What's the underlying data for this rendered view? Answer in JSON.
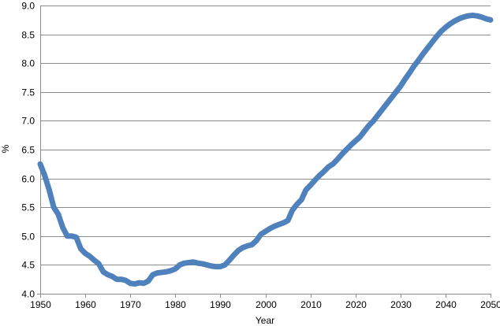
{
  "chart_data": {
    "type": "line",
    "title": "",
    "xlabel": "Year",
    "ylabel": "%",
    "xlim": [
      1950,
      2050
    ],
    "ylim": [
      4.0,
      9.0
    ],
    "x_ticks": [
      "1950",
      "1960",
      "1970",
      "1980",
      "1990",
      "2000",
      "2010",
      "2020",
      "2030",
      "2040",
      "2050"
    ],
    "y_ticks": [
      "4.0",
      "4.5",
      "5.0",
      "5.5",
      "6.0",
      "6.5",
      "7.0",
      "7.5",
      "8.0",
      "8.5",
      "9.0"
    ],
    "grid": "horizontal",
    "legend": "none",
    "colors": {
      "series": "#4f81bd",
      "grid": "#8c8c8c",
      "axis": "#8c8c8c"
    },
    "series": [
      {
        "x": [
          1950,
          1951,
          1952,
          1953,
          1954,
          1955,
          1956,
          1957,
          1958,
          1959,
          1960,
          1961,
          1962,
          1963,
          1964,
          1965,
          1966,
          1967,
          1968,
          1969,
          1970,
          1971,
          1972,
          1973,
          1974,
          1975,
          1976,
          1977,
          1978,
          1979,
          1980,
          1981,
          1982,
          1983,
          1984,
          1985,
          1986,
          1987,
          1988,
          1989,
          1990,
          1991,
          1992,
          1993,
          1994,
          1995,
          1996,
          1997,
          1998,
          1999,
          2000,
          2001,
          2002,
          2003,
          2004,
          2005,
          2006,
          2007,
          2008,
          2009,
          2010,
          2011,
          2012,
          2013,
          2014,
          2015,
          2016,
          2017,
          2018,
          2019,
          2020,
          2021,
          2022,
          2023,
          2024,
          2025,
          2026,
          2027,
          2028,
          2029,
          2030,
          2031,
          2032,
          2033,
          2034,
          2035,
          2036,
          2037,
          2038,
          2039,
          2040,
          2041,
          2042,
          2043,
          2044,
          2045,
          2046,
          2047,
          2048,
          2049,
          2050
        ],
        "values": [
          6.25,
          6.05,
          5.8,
          5.5,
          5.38,
          5.15,
          5.0,
          5.0,
          4.98,
          4.78,
          4.7,
          4.65,
          4.58,
          4.52,
          4.38,
          4.33,
          4.3,
          4.25,
          4.25,
          4.23,
          4.18,
          4.17,
          4.19,
          4.18,
          4.22,
          4.33,
          4.36,
          4.37,
          4.38,
          4.4,
          4.43,
          4.5,
          4.53,
          4.54,
          4.55,
          4.53,
          4.52,
          4.5,
          4.48,
          4.47,
          4.47,
          4.5,
          4.58,
          4.67,
          4.75,
          4.8,
          4.83,
          4.85,
          4.92,
          5.03,
          5.08,
          5.13,
          5.17,
          5.2,
          5.23,
          5.27,
          5.45,
          5.55,
          5.63,
          5.8,
          5.88,
          5.97,
          6.05,
          6.12,
          6.2,
          6.25,
          6.33,
          6.42,
          6.5,
          6.58,
          6.65,
          6.72,
          6.82,
          6.92,
          7.0,
          7.1,
          7.2,
          7.3,
          7.4,
          7.5,
          7.6,
          7.72,
          7.83,
          7.95,
          8.05,
          8.16,
          8.26,
          8.36,
          8.46,
          8.55,
          8.62,
          8.68,
          8.73,
          8.77,
          8.8,
          8.82,
          8.83,
          8.82,
          8.8,
          8.77,
          8.75
        ]
      }
    ]
  }
}
